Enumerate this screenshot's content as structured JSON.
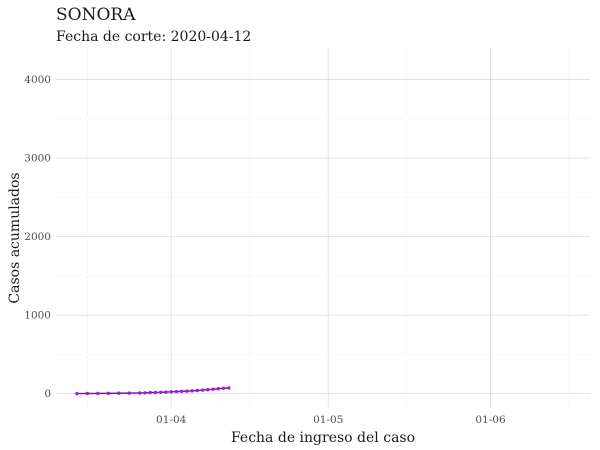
{
  "chart_data": {
    "type": "line",
    "title": "SONORA",
    "subtitle": "Fecha de corte: 2020-04-12",
    "xlabel": "Fecha de ingreso del caso",
    "ylabel": "Casos acumulados",
    "x_tick_labels": [
      "01-04",
      "01-05",
      "01-06"
    ],
    "y_tick_labels": [
      "0",
      "1000",
      "2000",
      "3000",
      "4000"
    ],
    "ylim": [
      -170,
      4400
    ],
    "xlim": [
      "2020-03-10",
      "2020-06-20"
    ],
    "grid": true,
    "legend": "none",
    "colors": {
      "line": "#7b10b5",
      "point": "#9b1fd6"
    },
    "series": [
      {
        "x": [
          "2020-03-14",
          "2020-03-16",
          "2020-03-18",
          "2020-03-20",
          "2020-03-22",
          "2020-03-24",
          "2020-03-26",
          "2020-03-27",
          "2020-03-28",
          "2020-03-29",
          "2020-03-30",
          "2020-03-31",
          "2020-04-01",
          "2020-04-02",
          "2020-04-03",
          "2020-04-04",
          "2020-04-05",
          "2020-04-06",
          "2020-04-07",
          "2020-04-08",
          "2020-04-09",
          "2020-04-10",
          "2020-04-11",
          "2020-04-12"
        ],
        "values": [
          1,
          2,
          3,
          4,
          5,
          7,
          9,
          11,
          13,
          15,
          17,
          20,
          23,
          26,
          29,
          32,
          36,
          40,
          45,
          51,
          57,
          63,
          68,
          72
        ]
      }
    ]
  }
}
